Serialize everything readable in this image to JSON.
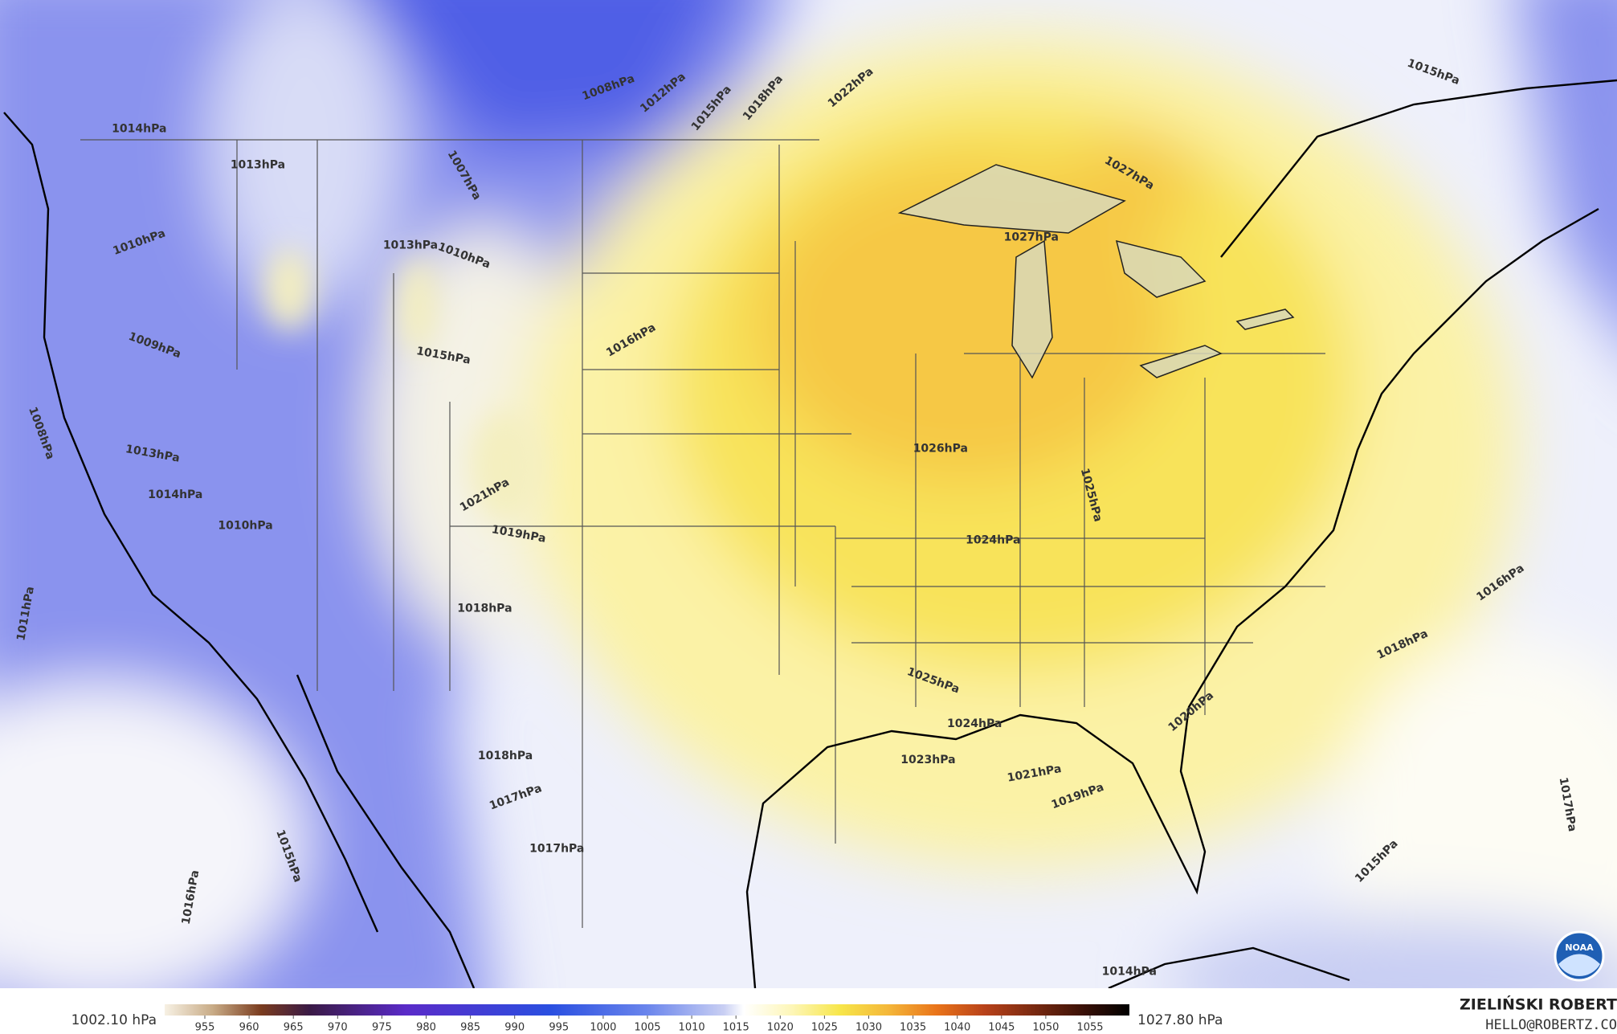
{
  "map": {
    "contour_labels": [
      "1027hPa",
      "1027hPa",
      "1026hPa",
      "1025hPa",
      "1024hPa",
      "1024hPa",
      "1023hPa",
      "1025hPa",
      "1021hPa",
      "1019hPa",
      "1018hPa",
      "1016hPa",
      "1015hPa",
      "1022hPa",
      "1018hPa",
      "1015hPa",
      "1012hPa",
      "1008hPa",
      "1007hPa",
      "1010hPa",
      "1009hPa",
      "1008hPa",
      "1013hPa",
      "1014hPa",
      "1010hPa",
      "1011hPa",
      "1016hPa",
      "1015hPa",
      "1013hPa",
      "1010hPa",
      "1019hPa",
      "1018hPa",
      "1018hPa",
      "1017hPa",
      "1017hPa",
      "1020hPa",
      "1017hPa",
      "1015hPa",
      "1014hPa",
      "1016hPa",
      "1015hPa",
      "1021hPa",
      "1014hPa",
      "1013hPa"
    ]
  },
  "colorbar": {
    "min_label": "1002.10 hPa",
    "max_label": "1027.80 hPa",
    "ticks": [
      955,
      960,
      965,
      970,
      975,
      980,
      985,
      990,
      995,
      1000,
      1005,
      1010,
      1015,
      1020,
      1025,
      1030,
      1035,
      1040,
      1045,
      1050,
      1055
    ]
  },
  "credit": {
    "name": "ZIELIŃSKI ROBERT",
    "email": "HELLO@ROBERTZ.CO"
  },
  "logo": "NOAA"
}
